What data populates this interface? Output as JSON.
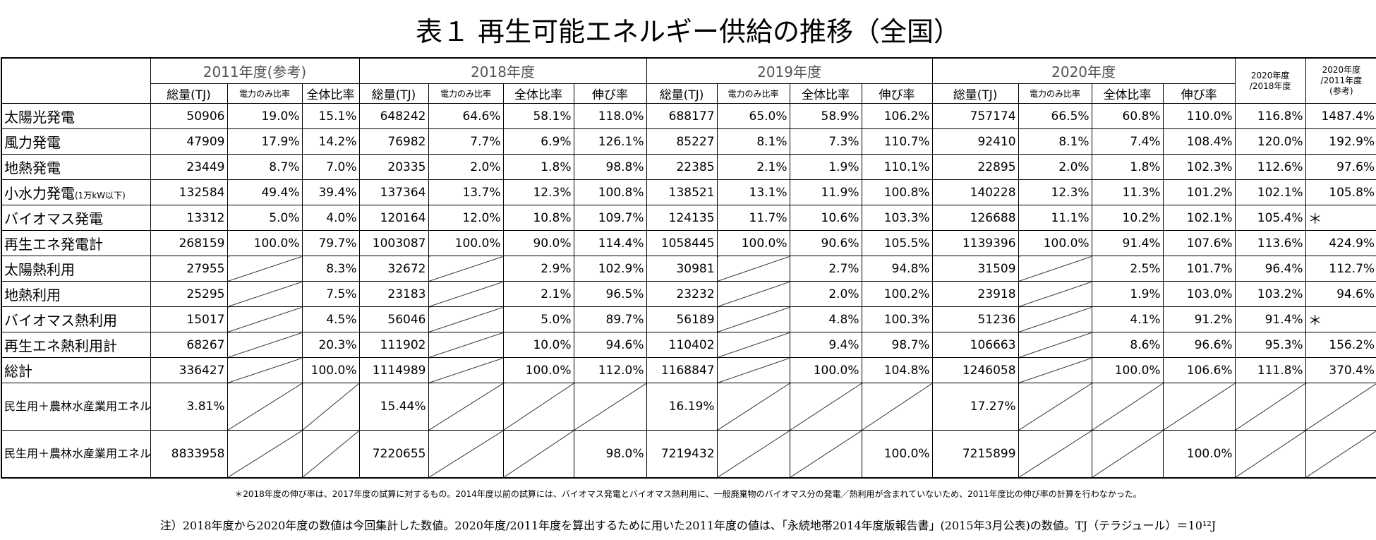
{
  "title": "表１ 再生可能エネルギー供給の推移（全国）",
  "table": {
    "year_headers": [
      "2011年度(参考)",
      "2018年度",
      "2019年度",
      "2020年度"
    ],
    "ratio_headers": [
      [
        "2020年度",
        "/2018年度"
      ],
      [
        "2020年度",
        "/2011年度",
        "(参考)"
      ]
    ],
    "sub_headers_2011": [
      "総量(TJ)",
      "電力のみ比率",
      "全体比率"
    ],
    "sub_headers": [
      "総量(TJ)",
      "電力のみ比率",
      "全体比率",
      "伸び率"
    ],
    "rows": [
      {
        "label": "太陽光発電",
        "cells": [
          "50906",
          "19.0%",
          "15.1%",
          "648242",
          "64.6%",
          "58.1%",
          "118.0%",
          "688177",
          "65.0%",
          "58.9%",
          "106.2%",
          "757174",
          "66.5%",
          "60.8%",
          "110.0%",
          "116.8%",
          "1487.4%"
        ]
      },
      {
        "label": "風力発電",
        "cells": [
          "47909",
          "17.9%",
          "14.2%",
          "76982",
          "7.7%",
          "6.9%",
          "126.1%",
          "85227",
          "8.1%",
          "7.3%",
          "110.7%",
          "92410",
          "8.1%",
          "7.4%",
          "108.4%",
          "120.0%",
          "192.9%"
        ]
      },
      {
        "label": "地熱発電",
        "cells": [
          "23449",
          "8.7%",
          "7.0%",
          "20335",
          "2.0%",
          "1.8%",
          "98.8%",
          "22385",
          "2.1%",
          "1.9%",
          "110.1%",
          "22895",
          "2.0%",
          "1.8%",
          "102.3%",
          "112.6%",
          "97.6%"
        ]
      },
      {
        "label": "小水力発電",
        "label_small": "(1万kW以下)",
        "cells": [
          "132584",
          "49.4%",
          "39.4%",
          "137364",
          "13.7%",
          "12.3%",
          "100.8%",
          "138521",
          "13.1%",
          "11.9%",
          "100.8%",
          "140228",
          "12.3%",
          "11.3%",
          "101.2%",
          "102.1%",
          "105.8%"
        ]
      },
      {
        "label": "バイオマス発電",
        "cells": [
          "13312",
          "5.0%",
          "4.0%",
          "120164",
          "12.0%",
          "10.8%",
          "109.7%",
          "124135",
          "11.7%",
          "10.6%",
          "103.3%",
          "126688",
          "11.1%",
          "10.2%",
          "102.1%",
          "105.4%",
          "＊"
        ]
      },
      {
        "label": "再生エネ発電計",
        "cells": [
          "268159",
          "100.0%",
          "79.7%",
          "1003087",
          "100.0%",
          "90.0%",
          "114.4%",
          "1058445",
          "100.0%",
          "90.6%",
          "105.5%",
          "1139396",
          "100.0%",
          "91.4%",
          "107.6%",
          "113.6%",
          "424.9%"
        ]
      },
      {
        "label": "太陽熱利用",
        "cells": [
          "27955",
          null,
          "8.3%",
          "32672",
          null,
          "2.9%",
          "102.9%",
          "30981",
          null,
          "2.7%",
          "94.8%",
          "31509",
          null,
          "2.5%",
          "101.7%",
          "96.4%",
          "112.7%"
        ]
      },
      {
        "label": "地熱利用",
        "cells": [
          "25295",
          null,
          "7.5%",
          "23183",
          null,
          "2.1%",
          "96.5%",
          "23232",
          null,
          "2.0%",
          "100.2%",
          "23918",
          null,
          "1.9%",
          "103.0%",
          "103.2%",
          "94.6%"
        ]
      },
      {
        "label": "バイオマス熱利用",
        "cells": [
          "15017",
          null,
          "4.5%",
          "56046",
          null,
          "5.0%",
          "89.7%",
          "56189",
          null,
          "4.8%",
          "100.3%",
          "51236",
          null,
          "4.1%",
          "91.2%",
          "91.4%",
          "＊"
        ]
      },
      {
        "label": "再生エネ熱利用計",
        "cells": [
          "68267",
          null,
          "20.3%",
          "111902",
          null,
          "10.0%",
          "94.6%",
          "110402",
          null,
          "9.4%",
          "98.7%",
          "106663",
          null,
          "8.6%",
          "96.6%",
          "95.3%",
          "156.2%"
        ]
      },
      {
        "label": "総計",
        "cells": [
          "336427",
          null,
          "100.0%",
          "1114989",
          null,
          "100.0%",
          "112.0%",
          "1168847",
          null,
          "100.0%",
          "104.8%",
          "1246058",
          null,
          "100.0%",
          "106.6%",
          "111.8%",
          "370.4%"
        ]
      },
      {
        "label": "民生用＋農林水産業用エネルギー需要に対する比率",
        "cells": [
          "3.81%",
          null,
          null,
          "15.44%",
          null,
          null,
          null,
          "16.19%",
          null,
          null,
          null,
          "17.27%",
          null,
          null,
          null,
          null,
          null
        ]
      },
      {
        "label": "民生用＋農林水産業用エネルギー需要(再エネ熱含む)",
        "cells": [
          "8833958",
          null,
          null,
          "7220655",
          null,
          null,
          "98.0%",
          "7219432",
          null,
          null,
          "100.0%",
          "7215899",
          null,
          null,
          "100.0%",
          null,
          null
        ]
      }
    ]
  },
  "footnote": "＊2018年度の伸び率は、2017年度の試算に対するもの。2014年度以前の試算には、バイオマス発電とバイオマス熱利用に、一般廃棄物のバイオマス分の発電／熱利用が含まれていないため、2011年度比の伸び率の計算を行わなかった。",
  "note": "注）2018年度から2020年度の数値は今回集計した数値。2020年度/2011年度を算出するために用いた2011年度の値は、「永続地帯2014年度版報告書」(2015年3月公表)の数値。TJ（テラジュール）＝10¹²J"
}
